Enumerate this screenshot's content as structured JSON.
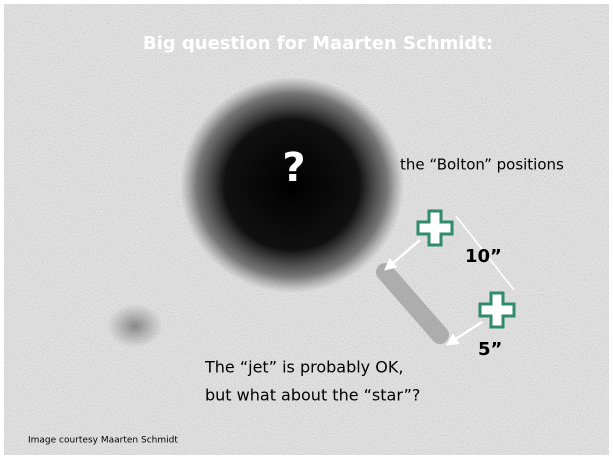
{
  "title": "Big question for Maarten Schmidt:",
  "question_mark": "?",
  "annotations": {
    "bolton": "the “Bolton” positions",
    "separation_10": "10”",
    "separation_5": "5”",
    "comment_line1": "The “jet” is probably OK,",
    "comment_line2": "but what about the “star”?"
  },
  "credit": "Image courtesy Maarten Schmidt"
}
